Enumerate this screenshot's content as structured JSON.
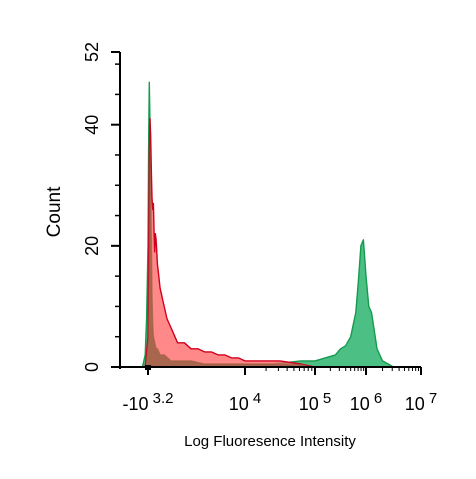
{
  "chart_data": {
    "type": "area",
    "title": "",
    "xlabel": "Log Fluoresence Intensity",
    "ylabel": "Count",
    "x_scale": "biexponential (log decades)",
    "x_tick_labels": [
      {
        "x": -3.2,
        "base": "-10",
        "exp": "3.2"
      },
      {
        "x": 4,
        "base": "10",
        "exp": "4"
      },
      {
        "x": 5,
        "base": "10",
        "exp": "5"
      },
      {
        "x": 6,
        "base": "10",
        "exp": "6"
      },
      {
        "x": 7,
        "base": "10",
        "exp": "7"
      }
    ],
    "y_ticks": [
      0,
      20,
      40,
      52
    ],
    "ylim": [
      0,
      52
    ],
    "grid": false,
    "legend": "none",
    "colors": {
      "red_fill": "#ff5a5a",
      "red_line": "#d0001e",
      "green_fill": "#2db56f",
      "green_line": "#159a4e",
      "overlap_fill": "#8a5a3a"
    },
    "series": [
      {
        "color": "green",
        "x": [
          -3.4,
          -3.3,
          -3.25,
          -3.2,
          -3.15,
          -3.1,
          -3.05,
          -3.0,
          -2.95,
          -2.9,
          -2.85,
          -2.8,
          -2.7,
          -2.6,
          -2.5,
          -2.3,
          -2.0,
          -1.5,
          -1.0,
          0.0,
          1.0,
          2.0,
          3.0,
          3.5,
          4.0,
          4.4,
          4.8,
          5.0,
          5.2,
          5.4,
          5.5,
          5.6,
          5.7,
          5.8,
          5.85,
          5.9,
          5.95,
          6.0,
          6.05,
          6.1,
          6.15,
          6.2,
          6.3,
          6.5
        ],
        "values": [
          0,
          2,
          8,
          20,
          38,
          47,
          40,
          30,
          20,
          12,
          7,
          5,
          4,
          3,
          3,
          2,
          2,
          1,
          1,
          1,
          0.5,
          0.5,
          0.5,
          0.5,
          0.5,
          0.5,
          1,
          1,
          1.5,
          2,
          3,
          3.5,
          5,
          9,
          14,
          20,
          21,
          15,
          10,
          9,
          6,
          3,
          1,
          0
        ]
      },
      {
        "color": "red",
        "x": [
          -3.3,
          -3.2,
          -3.15,
          -3.1,
          -3.05,
          -3.0,
          -2.95,
          -2.9,
          -2.85,
          -2.8,
          -2.75,
          -2.7,
          -2.65,
          -2.6,
          -2.55,
          -2.5,
          -2.4,
          -2.3,
          -2.2,
          -2.1,
          -2.0,
          -1.8,
          -1.6,
          -1.4,
          -1.2,
          -1.0,
          -0.5,
          0.0,
          0.5,
          1.0,
          1.5,
          2.0,
          2.5,
          3.0,
          3.5,
          4.0,
          4.5,
          4.8,
          5.0
        ],
        "values": [
          0,
          5,
          20,
          35,
          41,
          38,
          32,
          28,
          26,
          27,
          22,
          19,
          22,
          21,
          19,
          17,
          15,
          13,
          12,
          11,
          10,
          8,
          7,
          6,
          5,
          4,
          4,
          3,
          3,
          2.5,
          2.5,
          2,
          2,
          1.5,
          1.5,
          1,
          1,
          0.5,
          0
        ]
      }
    ]
  }
}
